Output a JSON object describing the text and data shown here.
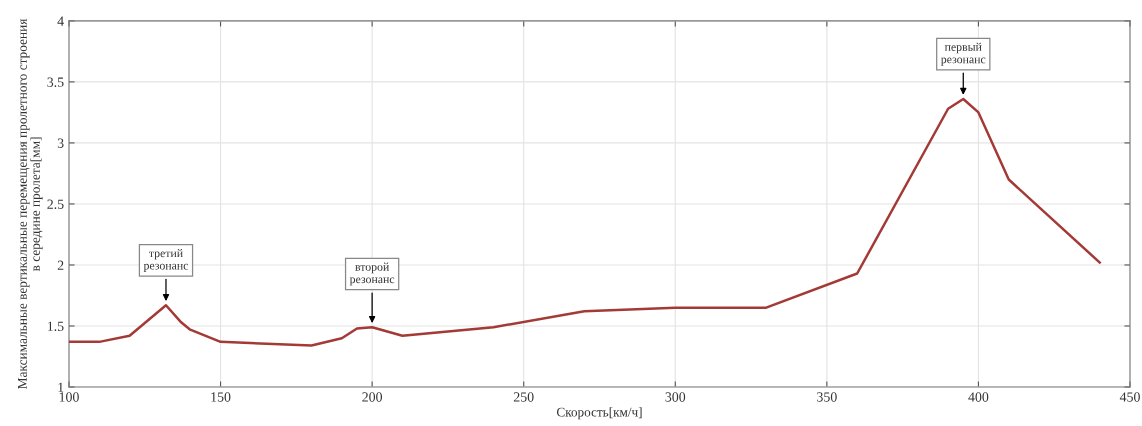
{
  "chart_data": {
    "type": "line",
    "xlabel": "Скорость[км/ч]",
    "ylabel": "Максимальные вертикальные перемещения пролетного строения\nв середине пролета[мм]",
    "x": [
      100,
      110,
      120,
      132,
      137,
      140,
      150,
      180,
      190,
      195,
      200,
      210,
      240,
      270,
      300,
      330,
      360,
      390,
      395,
      400,
      410,
      440
    ],
    "series": [
      {
        "color": "#a33a36",
        "values": [
          1.37,
          1.37,
          1.42,
          1.67,
          1.53,
          1.47,
          1.37,
          1.34,
          1.4,
          1.48,
          1.49,
          1.42,
          1.49,
          1.62,
          1.65,
          1.65,
          1.93,
          3.28,
          3.36,
          3.25,
          2.7,
          2.02
        ]
      }
    ],
    "xlim": [
      100,
      450
    ],
    "ylim": [
      1,
      4
    ],
    "xticks": [
      100,
      150,
      200,
      250,
      300,
      350,
      400,
      450
    ],
    "yticks": [
      1,
      1.5,
      2,
      2.5,
      3,
      3.5,
      4
    ],
    "grid": true,
    "marker": "none",
    "line_style": "solid",
    "annotations": [
      {
        "text": "третий\nрезонанс",
        "x": 132,
        "y": 1.67
      },
      {
        "text": "второй\nрезонанс",
        "x": 200,
        "y": 1.49
      },
      {
        "text": "первый\nрезонанс",
        "x": 395,
        "y": 3.36
      }
    ]
  }
}
